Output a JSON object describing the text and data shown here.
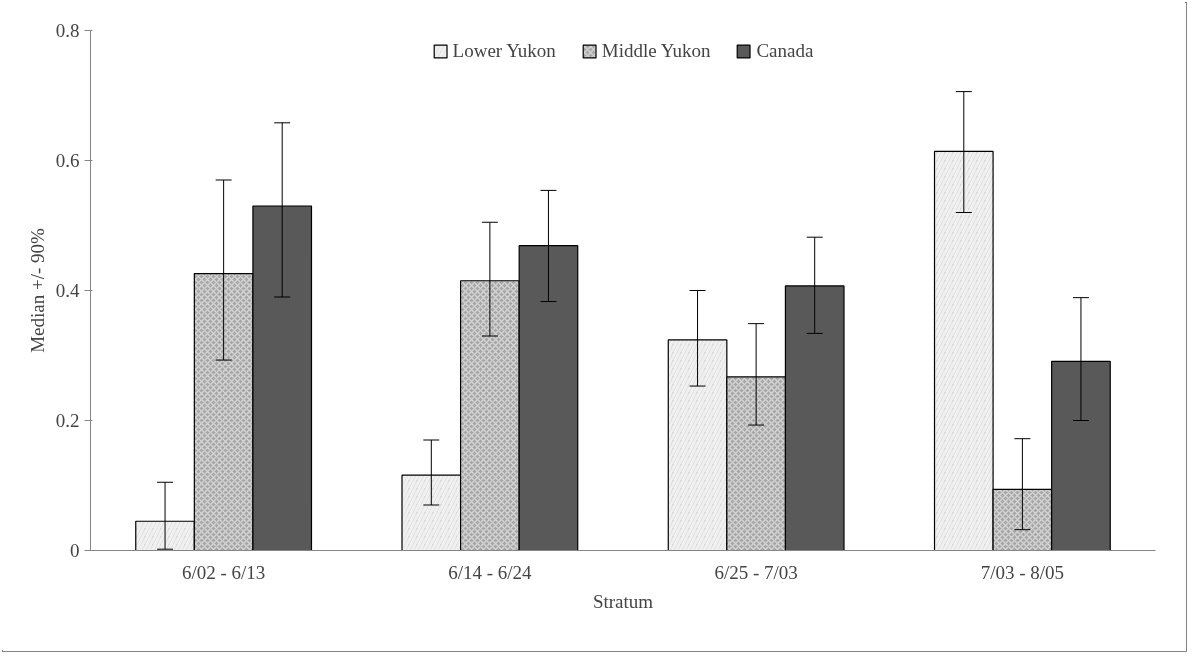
{
  "chart_data": {
    "type": "bar",
    "xlabel": "Stratum",
    "ylabel": "Median +/- 90%",
    "categories": [
      "6/02 - 6/13",
      "6/14 - 6/24",
      "6/25 - 7/03",
      "7/03 - 8/05"
    ],
    "series": [
      {
        "name": "Lower Yukon",
        "color": "#d9d9d9",
        "values": [
          0.045,
          0.116,
          0.324,
          0.614
        ],
        "errors": [
          [
            0.002,
            0.105
          ],
          [
            0.07,
            0.17
          ],
          [
            0.253,
            0.4
          ],
          [
            0.52,
            0.706
          ]
        ]
      },
      {
        "name": "Middle Yukon",
        "color": "#a6a6a6",
        "values": [
          0.426,
          0.415,
          0.267,
          0.094
        ],
        "errors": [
          [
            0.293,
            0.57
          ],
          [
            0.33,
            0.505
          ],
          [
            0.193,
            0.349
          ],
          [
            0.032,
            0.172
          ]
        ]
      },
      {
        "name": "Canada",
        "color": "#595959",
        "values": [
          0.53,
          0.469,
          0.407,
          0.291
        ],
        "errors": [
          [
            0.39,
            0.658
          ],
          [
            0.383,
            0.554
          ],
          [
            0.334,
            0.482
          ],
          [
            0.2,
            0.389
          ]
        ]
      }
    ],
    "ylim": [
      0,
      0.8
    ],
    "yticks": [
      0,
      0.2,
      0.4,
      0.6,
      0.8
    ],
    "grid": false,
    "legend": "top"
  }
}
